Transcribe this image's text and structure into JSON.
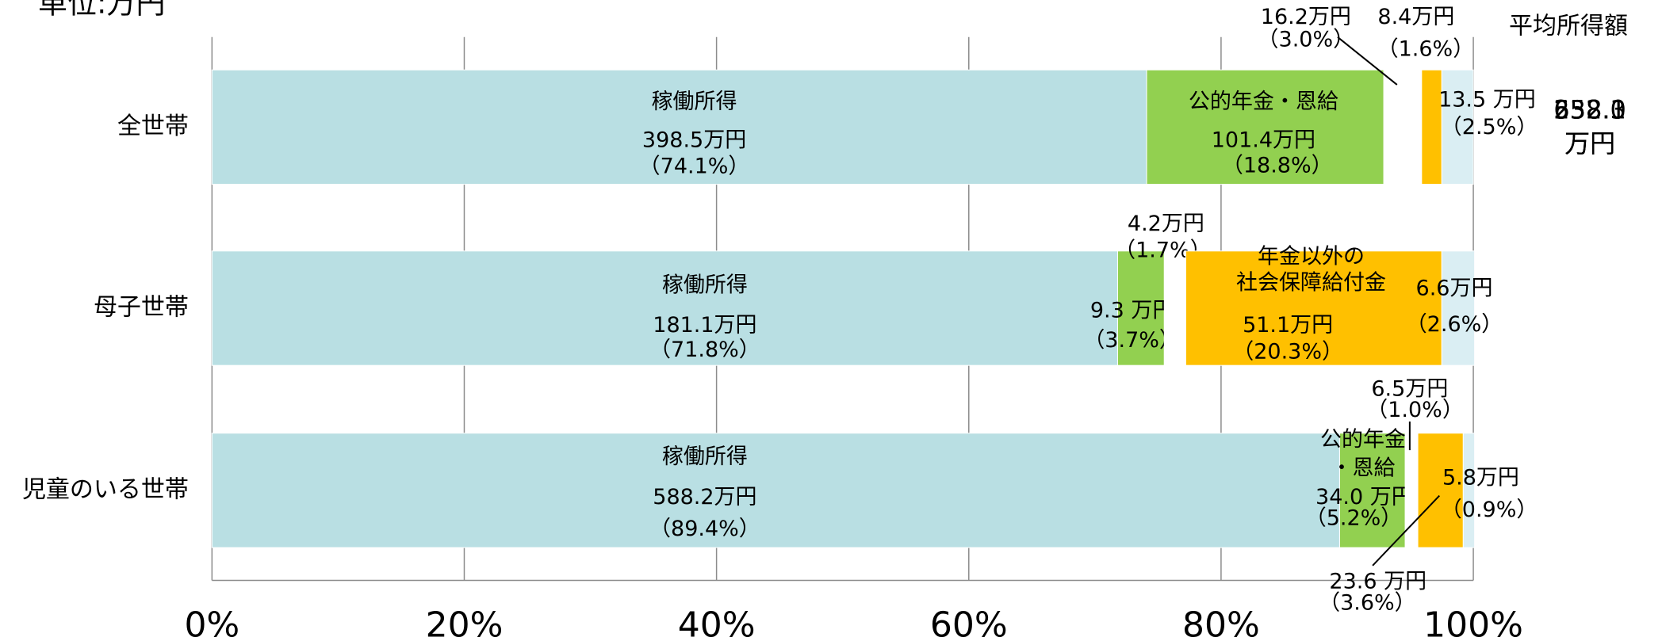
{
  "chart_data": {
    "type": "stacked_bar_h",
    "unit_label": "単位:万円",
    "total_header": "平均所得額",
    "colors": [
      "#b9dfe3",
      "#92d050",
      "#ffffff",
      "#ffc000",
      "#daeef3"
    ],
    "xlim": [
      0,
      100
    ],
    "xticks": [
      {
        "value": 0,
        "label": "0%"
      },
      {
        "value": 20,
        "label": "20%"
      },
      {
        "value": 40,
        "label": "40%"
      },
      {
        "value": 60,
        "label": "60%"
      },
      {
        "value": 80,
        "label": "80%"
      },
      {
        "value": 100,
        "label": "100%"
      }
    ],
    "grid": true,
    "rows": [
      {
        "category": "全世帯",
        "total_label": [
          "538.0",
          "万円"
        ],
        "segments": [
          {
            "name": [
              "稼働所得"
            ],
            "amount_label": "398.5万円",
            "value": 74.1,
            "value_label": "（74.1%）"
          },
          {
            "name": [
              "公的年金・恩給"
            ],
            "amount_label": "101.4万円",
            "value": 18.8,
            "value_label": "（18.8%）"
          },
          {
            "amount_label": "16.2万円",
            "value": 3.0,
            "value_label": "（3.0%）"
          },
          {
            "amount_label": "8.4万円",
            "value": 1.6,
            "value_label": "（1.6%）"
          },
          {
            "amount_label": "13.5 万円",
            "value": 2.5,
            "value_label": "（2.5%）"
          }
        ]
      },
      {
        "category": "母子世帯",
        "total_label": [
          "252.3",
          "万円"
        ],
        "segments": [
          {
            "name": [
              "稼働所得"
            ],
            "amount_label": "181.1万円",
            "value": 71.8,
            "value_label": "（71.8%）"
          },
          {
            "amount_label": "9.3 万円",
            "value": 3.7,
            "value_label": "（3.7%）"
          },
          {
            "amount_label": "4.2万円",
            "value": 1.7,
            "value_label": "（1.7%）"
          },
          {
            "name": [
              "年金以外の",
              "社会保障給付金"
            ],
            "amount_label": "51.1万円",
            "value": 20.3,
            "value_label": "（20.3%）"
          },
          {
            "amount_label": "6.6万円",
            "value": 2.6,
            "value_label": "（2.6%）"
          }
        ]
      },
      {
        "category": "児童のいる世帯",
        "total_label": [
          "658.1",
          "万円"
        ],
        "segments": [
          {
            "name": [
              "稼働所得"
            ],
            "amount_label": "588.2万円",
            "value": 89.4,
            "value_label": "（89.4%）"
          },
          {
            "name": [
              "公的年金",
              "・恩給"
            ],
            "amount_label": "34.0 万円",
            "value": 5.2,
            "value_label": "（5.2%）"
          },
          {
            "amount_label": "6.5万円",
            "value": 1.0,
            "value_label": "（1.0%）"
          },
          {
            "amount_label": "23.6 万円",
            "value": 3.6,
            "value_label": "（3.6%）"
          },
          {
            "amount_label": "5.8万円",
            "value": 0.9,
            "value_label": "（0.9%）"
          }
        ]
      }
    ]
  }
}
